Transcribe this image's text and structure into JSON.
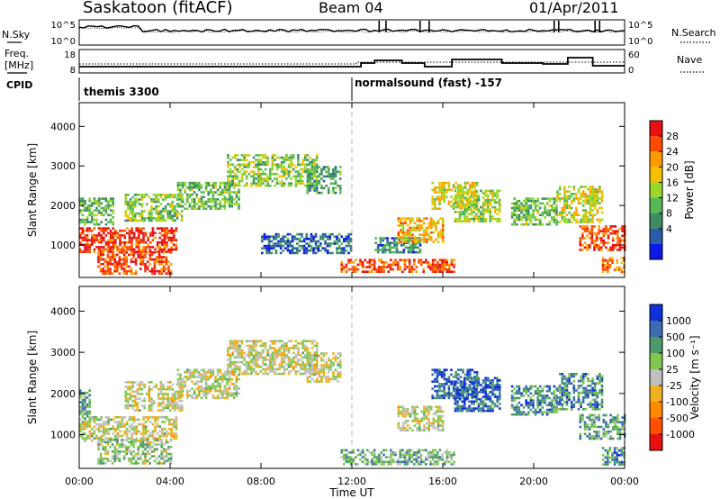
{
  "header": {
    "station": "Saskatoon (fitACF)",
    "beam": "Beam 04",
    "date": "01/Apr/2011"
  },
  "summary_panel": {
    "nsky_label": "N.Sky",
    "nsearch_label": "N.Search",
    "count_ticks_left": [
      "10^5",
      "10^0"
    ],
    "count_ticks_right": [
      "10^5",
      "10^0"
    ],
    "freq_label_1": "Freq.",
    "freq_label_2": "[MHz]",
    "freq_ticks": [
      "18",
      "8"
    ],
    "nave_label": "Nave",
    "nave_ticks": [
      "60",
      "0"
    ],
    "cpid_label": "CPID",
    "cpid_modes": [
      "themis 3300",
      "normalsound (fast) -157"
    ],
    "cpid_switch_hour": 12.0
  },
  "chart_data": [
    {
      "type": "heatmap",
      "panel": "power",
      "xlabel": "Time UT",
      "ylabel": "Slant Range [km]",
      "xlim_hours": [
        0,
        24
      ],
      "ylim": [
        180,
        4600
      ],
      "x_ticks": [
        "00:00",
        "04:00",
        "08:00",
        "12:00",
        "16:00",
        "20:00",
        "00:00"
      ],
      "y_ticks": [
        1000,
        2000,
        3000,
        4000
      ],
      "colorbar_label": "Power [dB]",
      "colorbar_ticks": [
        "28",
        "24",
        "20",
        "16",
        "12",
        "8",
        "4"
      ],
      "colorbar_colors": [
        "#e81010",
        "#ff4a00",
        "#ff9a00",
        "#f5c000",
        "#98d828",
        "#55b855",
        "#3c8c60",
        "#2b5ca8",
        "#0a18e8"
      ],
      "echo_regions": [
        {
          "t": [
            0.0,
            4.3
          ],
          "r": [
            850,
            1450
          ],
          "level": 0.9
        },
        {
          "t": [
            0.8,
            4.0
          ],
          "r": [
            300,
            900
          ],
          "level": 0.85
        },
        {
          "t": [
            0.0,
            1.5
          ],
          "r": [
            1500,
            2200
          ],
          "level": 0.4
        },
        {
          "t": [
            2.0,
            4.5
          ],
          "r": [
            1600,
            2300
          ],
          "level": 0.45
        },
        {
          "t": [
            4.3,
            7.0
          ],
          "r": [
            1900,
            2600
          ],
          "level": 0.4
        },
        {
          "t": [
            6.5,
            10.5
          ],
          "r": [
            2500,
            3300
          ],
          "level": 0.45
        },
        {
          "t": [
            10.0,
            11.5
          ],
          "r": [
            2300,
            3000
          ],
          "level": 0.3
        },
        {
          "t": [
            8.0,
            12.0
          ],
          "r": [
            800,
            1300
          ],
          "level": 0.2
        },
        {
          "t": [
            11.5,
            16.5
          ],
          "r": [
            300,
            650
          ],
          "level": 0.85
        },
        {
          "t": [
            13.0,
            15.0
          ],
          "r": [
            800,
            1200
          ],
          "level": 0.25
        },
        {
          "t": [
            14.0,
            16.0
          ],
          "r": [
            1100,
            1700
          ],
          "level": 0.65
        },
        {
          "t": [
            15.5,
            17.5
          ],
          "r": [
            1900,
            2600
          ],
          "level": 0.6
        },
        {
          "t": [
            16.5,
            18.5
          ],
          "r": [
            1600,
            2400
          ],
          "level": 0.5
        },
        {
          "t": [
            19.0,
            21.0
          ],
          "r": [
            1500,
            2200
          ],
          "level": 0.4
        },
        {
          "t": [
            21.0,
            23.0
          ],
          "r": [
            1600,
            2500
          ],
          "level": 0.55
        },
        {
          "t": [
            22.0,
            24.0
          ],
          "r": [
            900,
            1500
          ],
          "level": 0.85
        },
        {
          "t": [
            23.0,
            24.0
          ],
          "r": [
            300,
            700
          ],
          "level": 0.75
        }
      ]
    },
    {
      "type": "heatmap",
      "panel": "velocity",
      "xlabel": "Time UT",
      "ylabel": "Slant Range [km]",
      "xlim_hours": [
        0,
        24
      ],
      "ylim": [
        180,
        4600
      ],
      "x_ticks": [
        "00:00",
        "04:00",
        "08:00",
        "12:00",
        "16:00",
        "20:00",
        "00:00"
      ],
      "y_ticks": [
        1000,
        2000,
        3000,
        4000
      ],
      "colorbar_label": "Velocity [m s⁻¹]",
      "colorbar_ticks": [
        "1000",
        "500",
        "100",
        "25",
        "-25",
        "-100",
        "-500",
        "-1000"
      ],
      "colorbar_colors": [
        "#1030d8",
        "#3c6cb0",
        "#4a9a6a",
        "#80c850",
        "#c0c0c0",
        "#f0b020",
        "#ff8a00",
        "#ff5000",
        "#e81010"
      ],
      "echo_regions": [
        {
          "t": [
            0.0,
            4.3
          ],
          "r": [
            850,
            1450
          ],
          "level": 0.5
        },
        {
          "t": [
            0.8,
            4.0
          ],
          "r": [
            300,
            900
          ],
          "level": 0.6
        },
        {
          "t": [
            0.0,
            0.5
          ],
          "r": [
            1400,
            2100
          ],
          "level": 0.65
        },
        {
          "t": [
            2.0,
            4.5
          ],
          "r": [
            1600,
            2300
          ],
          "level": 0.5
        },
        {
          "t": [
            4.3,
            7.0
          ],
          "r": [
            1900,
            2600
          ],
          "level": 0.5
        },
        {
          "t": [
            6.5,
            10.5
          ],
          "r": [
            2500,
            3300
          ],
          "level": 0.5
        },
        {
          "t": [
            10.0,
            11.5
          ],
          "r": [
            2300,
            3000
          ],
          "level": 0.5
        },
        {
          "t": [
            11.5,
            16.5
          ],
          "r": [
            300,
            650
          ],
          "level": 0.65
        },
        {
          "t": [
            14.0,
            16.0
          ],
          "r": [
            1100,
            1700
          ],
          "level": 0.5
        },
        {
          "t": [
            15.5,
            17.5
          ],
          "r": [
            1900,
            2600
          ],
          "level": 0.85
        },
        {
          "t": [
            16.5,
            18.5
          ],
          "r": [
            1600,
            2400
          ],
          "level": 0.85
        },
        {
          "t": [
            19.0,
            21.0
          ],
          "r": [
            1500,
            2200
          ],
          "level": 0.75
        },
        {
          "t": [
            21.0,
            23.0
          ],
          "r": [
            1600,
            2500
          ],
          "level": 0.75
        },
        {
          "t": [
            22.0,
            24.0
          ],
          "r": [
            900,
            1500
          ],
          "level": 0.7
        },
        {
          "t": [
            23.0,
            24.0
          ],
          "r": [
            300,
            700
          ],
          "level": 0.75
        }
      ]
    }
  ]
}
